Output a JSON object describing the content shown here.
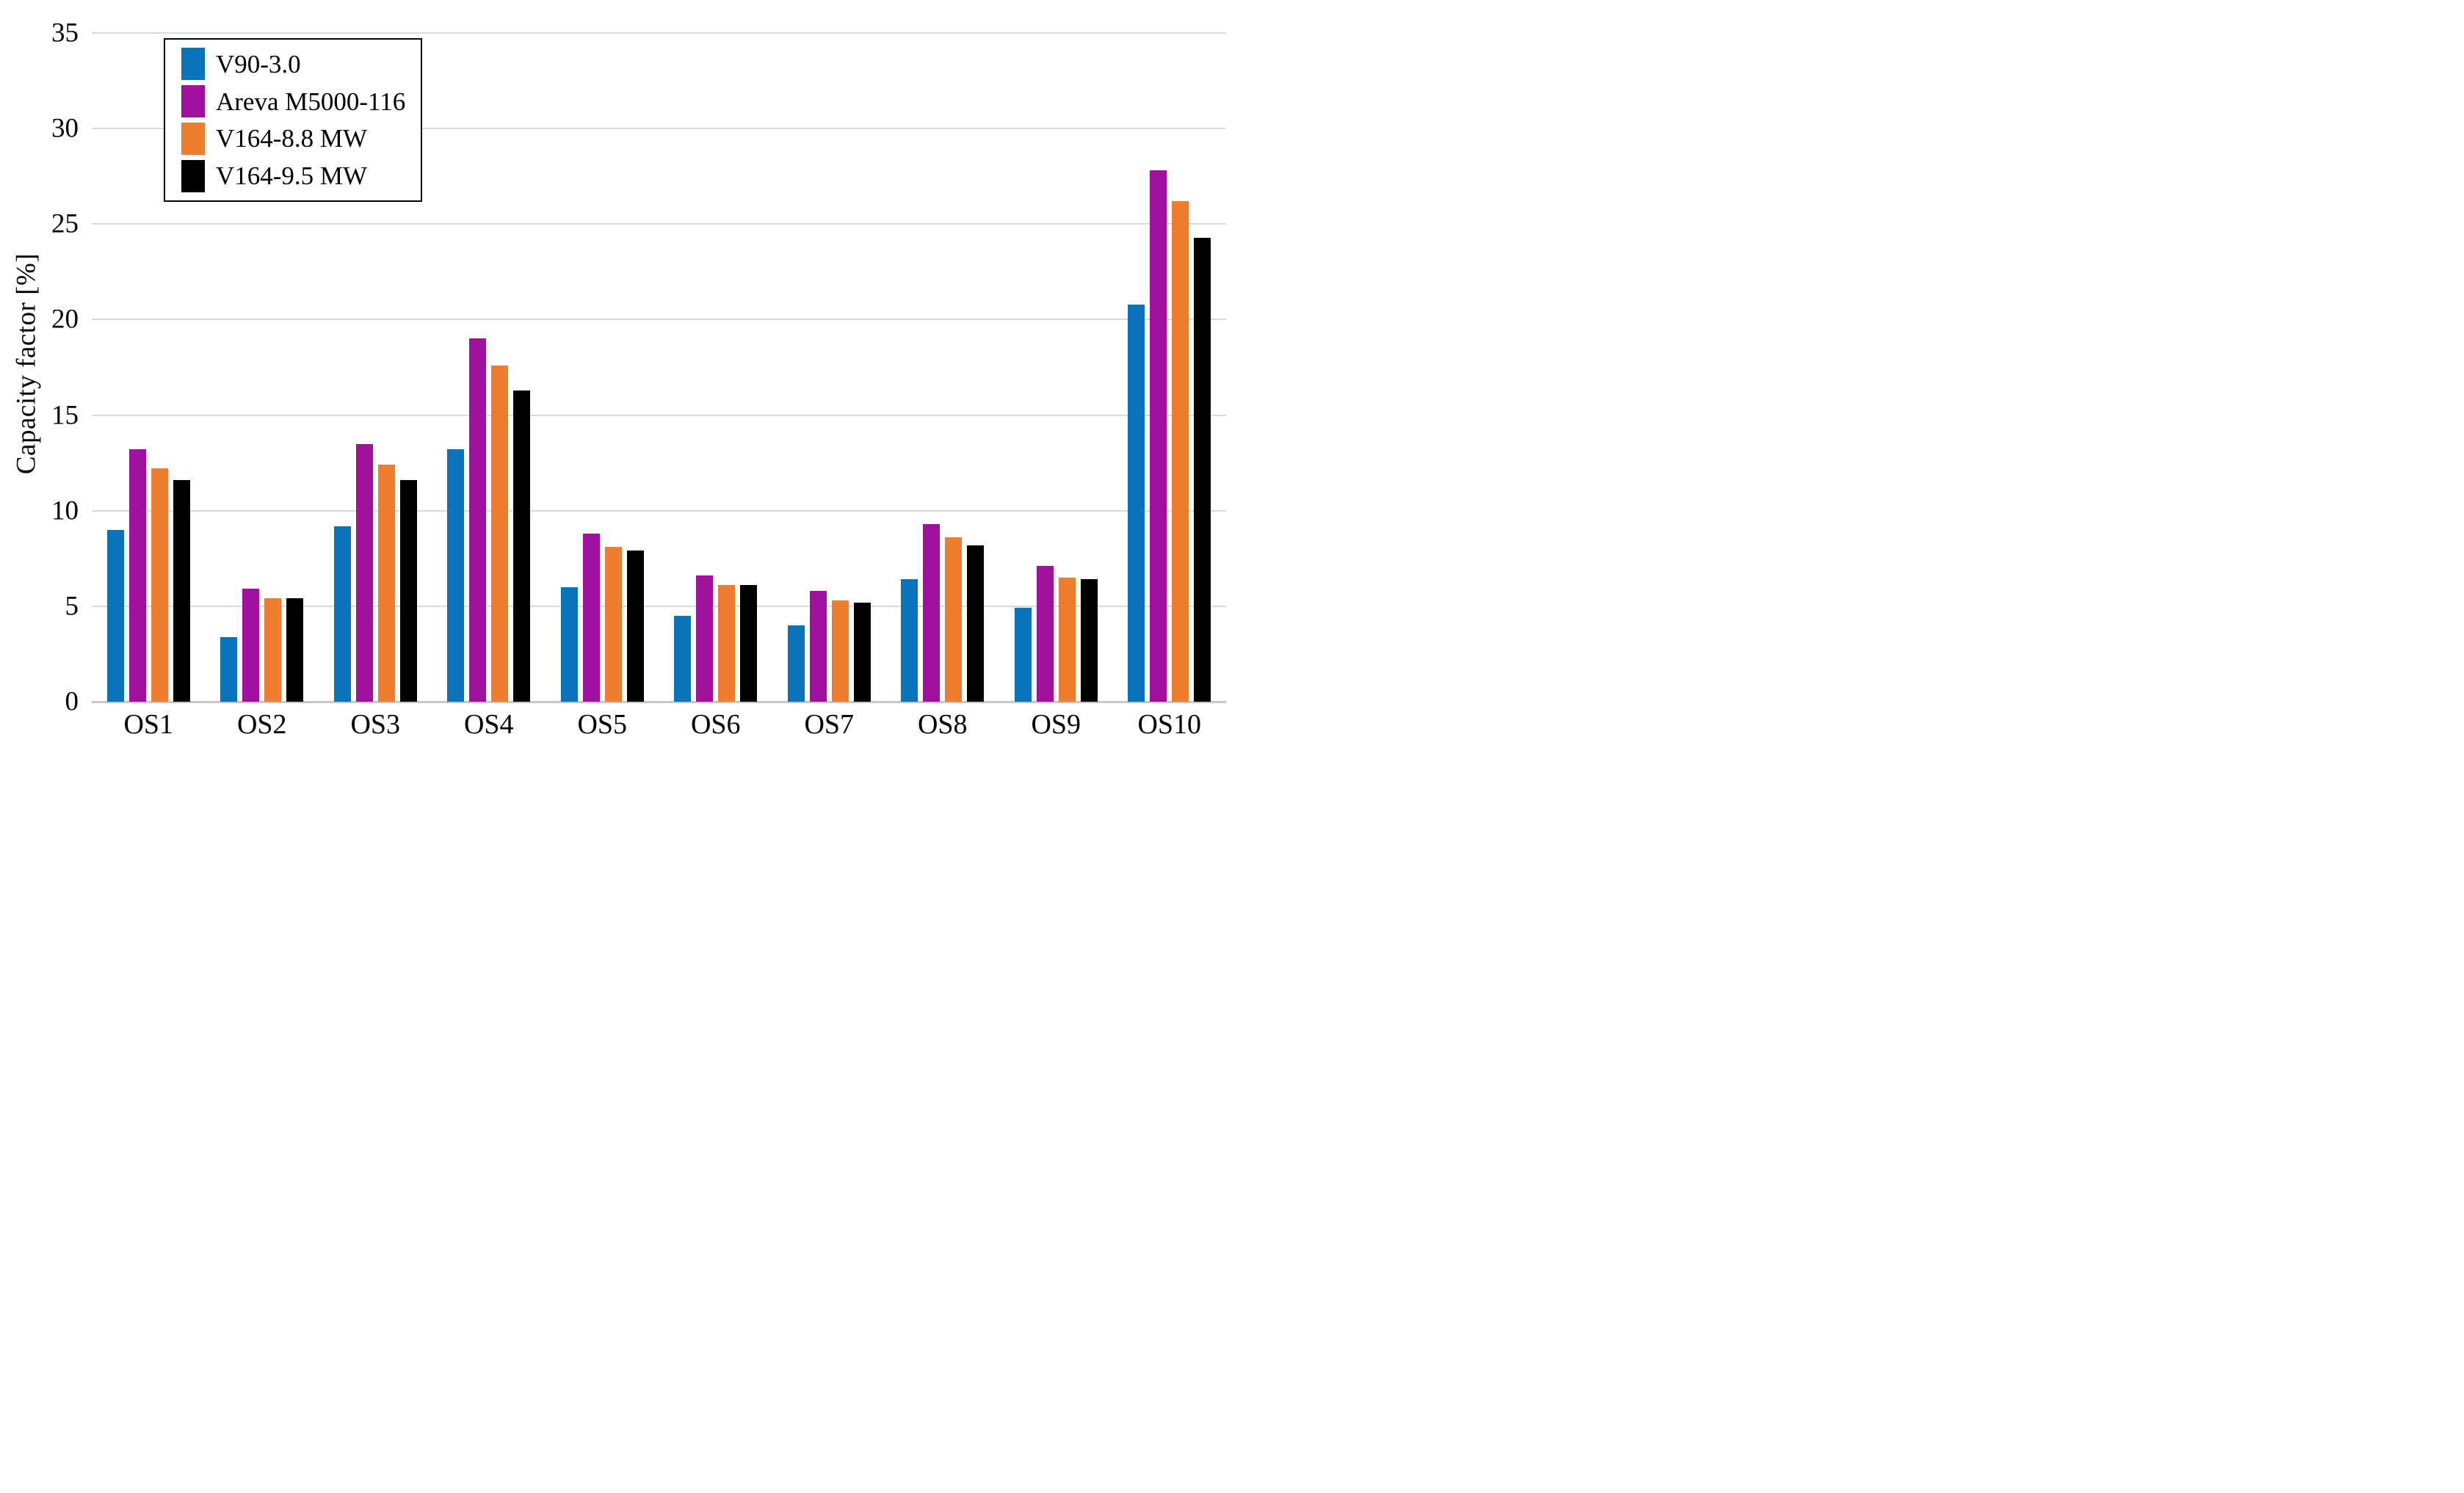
{
  "figure": {
    "background": "#ffffff"
  },
  "chart_data": {
    "type": "bar",
    "title": "",
    "xlabel": "",
    "ylabel": "Capacity factor [%]",
    "ylim": [
      0,
      35
    ],
    "yticks": [
      0,
      5,
      10,
      15,
      20,
      25,
      30,
      35
    ],
    "grid": "horizontal gridlines on",
    "legend_position": "top-left inside plot",
    "categories": [
      "OS1",
      "OS2",
      "OS3",
      "OS4",
      "OS5",
      "OS6",
      "OS7",
      "OS8",
      "OS9",
      "OS10"
    ],
    "series": [
      {
        "name": "V90-3.0",
        "color": "#0b73bc",
        "values": [
          9.0,
          3.4,
          9.2,
          13.2,
          6.0,
          4.5,
          4.0,
          6.4,
          4.9,
          20.8
        ]
      },
      {
        "name": "Areva M5000-116",
        "color": "#a0109c",
        "values": [
          13.2,
          5.9,
          13.5,
          19.0,
          8.8,
          6.6,
          5.8,
          9.3,
          7.1,
          27.8
        ]
      },
      {
        "name": "V164-8.8 MW",
        "color": "#ee7d2f",
        "values": [
          12.2,
          5.4,
          12.4,
          17.6,
          8.1,
          6.1,
          5.3,
          8.6,
          6.5,
          26.2
        ]
      },
      {
        "name": "V164-9.5 MW",
        "color": "#000000",
        "values": [
          11.6,
          5.4,
          11.6,
          16.3,
          7.9,
          6.1,
          5.2,
          8.2,
          6.4,
          24.3
        ]
      }
    ],
    "style_colors": {
      "gridline": "#d9d9d9",
      "axis_line": "#c8c8c8",
      "text": "#000000",
      "background": "#ffffff"
    }
  }
}
